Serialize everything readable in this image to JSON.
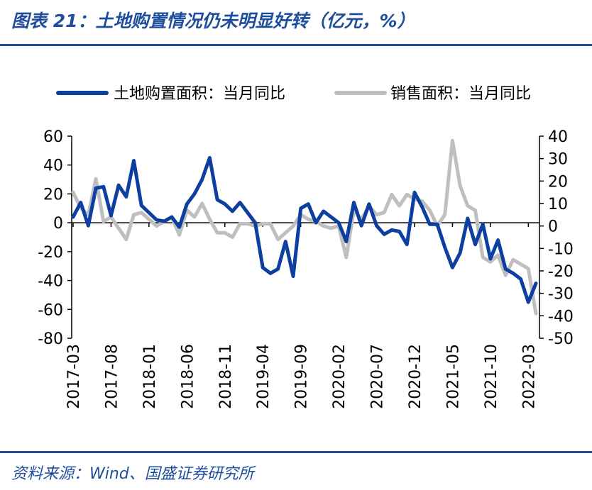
{
  "title": "图表 21：土地购置情况仍未明显好转（亿元，%）",
  "source": "资料来源：Wind、国盛证券研究所",
  "colors": {
    "brand": "#1f4e9c",
    "series_land": "#0d3fa0",
    "series_sales": "#bfbfbf"
  },
  "chart_data": {
    "type": "line",
    "x": [
      "2017-03",
      "2017-04",
      "2017-05",
      "2017-06",
      "2017-07",
      "2017-08",
      "2017-09",
      "2017-10",
      "2017-11",
      "2017-12",
      "2018-01",
      "2018-02",
      "2018-03",
      "2018-04",
      "2018-05",
      "2018-06",
      "2018-07",
      "2018-08",
      "2018-09",
      "2018-10",
      "2018-11",
      "2018-12",
      "2019-01",
      "2019-02",
      "2019-03",
      "2019-04",
      "2019-05",
      "2019-06",
      "2019-07",
      "2019-08",
      "2019-09",
      "2019-10",
      "2019-11",
      "2019-12",
      "2020-01",
      "2020-02",
      "2020-03",
      "2020-04",
      "2020-05",
      "2020-06",
      "2020-07",
      "2020-08",
      "2020-09",
      "2020-10",
      "2020-11",
      "2020-12",
      "2021-01",
      "2021-02",
      "2021-03",
      "2021-04",
      "2021-05",
      "2021-06",
      "2021-07",
      "2021-08",
      "2021-09",
      "2021-10",
      "2021-11",
      "2021-12",
      "2022-01",
      "2022-02",
      "2022-03",
      "2022-04"
    ],
    "x_tick_labels": [
      "2017-03",
      "2017-08",
      "2018-01",
      "2018-06",
      "2018-11",
      "2019-04",
      "2019-09",
      "2020-02",
      "2020-07",
      "2020-12",
      "2021-05",
      "2021-10",
      "2022-03"
    ],
    "series": [
      {
        "name": "土地购置面积：当月同比",
        "axis": "left",
        "values": [
          4,
          14,
          -2,
          24,
          25,
          5,
          26,
          18,
          43,
          12,
          7,
          2,
          1,
          4,
          -3,
          13,
          20,
          30,
          45,
          16,
          13,
          8,
          14,
          7,
          0,
          -31,
          -35,
          -32,
          -13,
          -37,
          10,
          13,
          0,
          8,
          4,
          0,
          -13,
          14,
          -2,
          13,
          -2,
          -8,
          -5,
          -6,
          -15,
          21,
          11,
          -1,
          -1,
          -17,
          -31,
          -21,
          3,
          -15,
          -1,
          -25,
          -12,
          -32,
          -35,
          -39,
          -55,
          -42
        ]
      },
      {
        "name": "销售面积：当月同比",
        "axis": "right",
        "values": [
          15,
          8,
          5,
          21,
          2,
          4,
          -1,
          -6,
          5,
          6,
          3,
          0,
          2,
          4,
          -4,
          7,
          4,
          10,
          3,
          -3,
          -3,
          -5,
          1,
          1,
          0,
          1,
          1,
          -6,
          -3,
          0,
          5,
          3,
          2,
          0,
          -1,
          0,
          -14,
          7,
          3,
          9,
          5,
          6,
          14,
          9,
          14,
          12,
          11,
          7,
          0,
          5,
          38,
          18,
          9,
          7,
          -14,
          -16,
          -13,
          -22,
          -15,
          -17,
          -19,
          -39
        ]
      }
    ],
    "left_axis": {
      "min": -80,
      "max": 60,
      "ticks": [
        60,
        40,
        20,
        0,
        -20,
        -40,
        -60,
        -80
      ]
    },
    "right_axis": {
      "min": -50,
      "max": 40,
      "ticks": [
        40,
        30,
        20,
        10,
        0,
        -10,
        -20,
        -30,
        -40,
        -50
      ]
    },
    "legend_position": "top",
    "grid": false
  }
}
